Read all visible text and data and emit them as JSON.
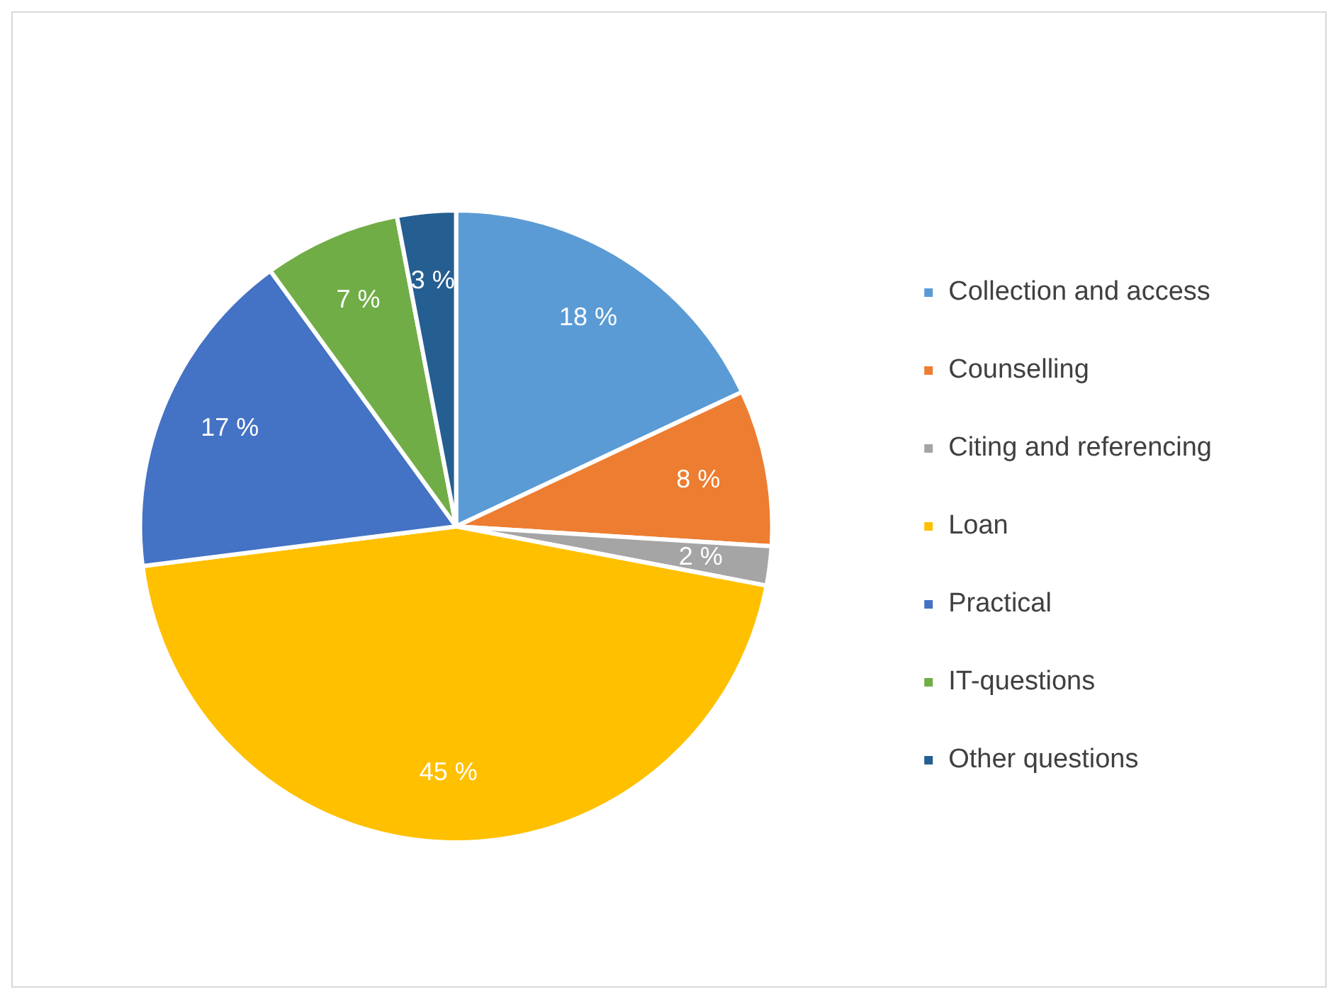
{
  "chart_data": {
    "type": "pie",
    "categories": [
      "Collection and access",
      "Counselling",
      "Citing and referencing",
      "Loan",
      "Practical",
      "IT-questions",
      "Other questions"
    ],
    "values": [
      18,
      8,
      2,
      45,
      17,
      7,
      3
    ],
    "colors": [
      "#5b9bd5",
      "#ed7d31",
      "#a5a5a5",
      "#ffc000",
      "#4472c4",
      "#70ad47",
      "#255e91"
    ],
    "value_labels": [
      "18 %",
      "8 %",
      "2 %",
      "45 %",
      "17 %",
      "7 %",
      "3 %"
    ],
    "legend": "right"
  }
}
